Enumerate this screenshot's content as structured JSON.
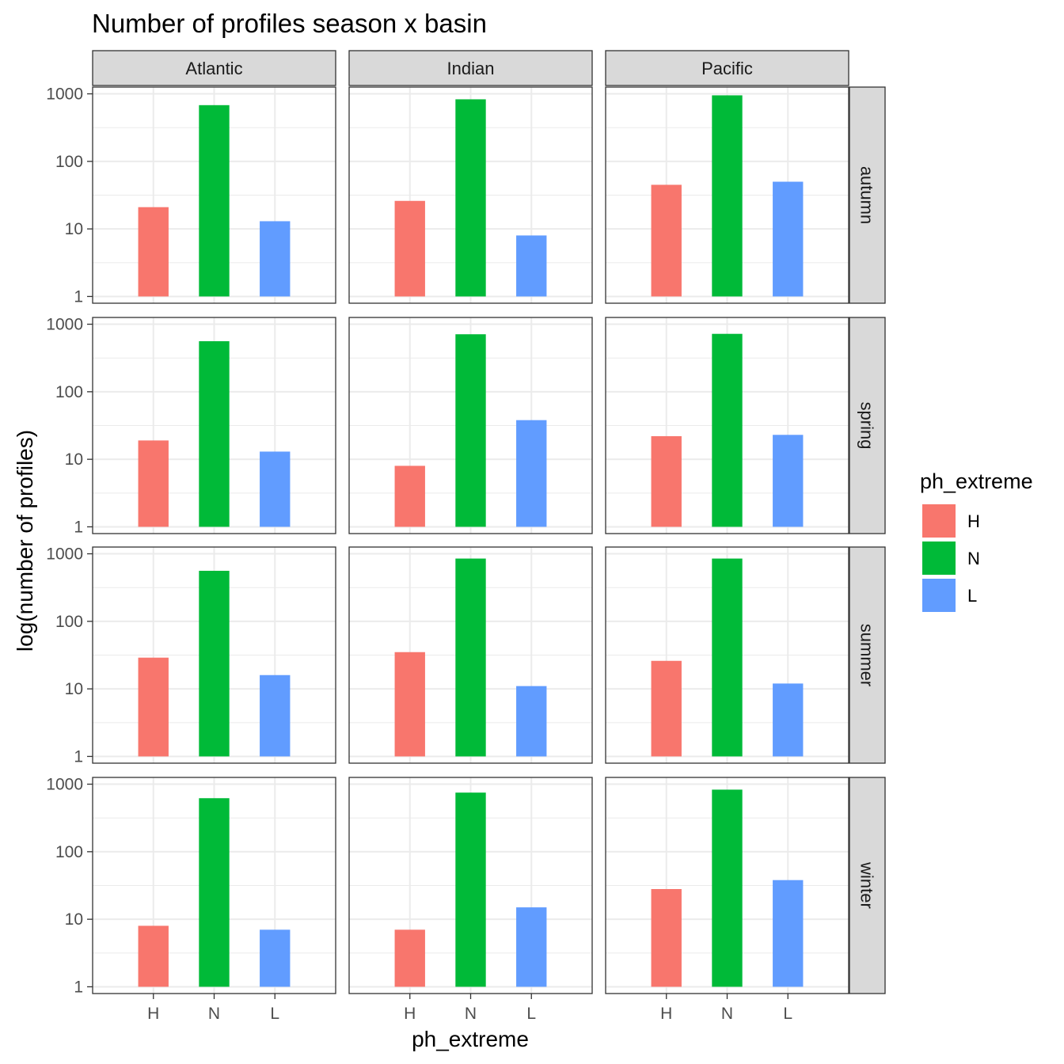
{
  "chart_data": {
    "type": "bar",
    "title": "Number of profiles season x basin",
    "xlabel": "ph_extreme",
    "ylabel": "log(number of profiles)",
    "yscale": "log10",
    "ylim": [
      1,
      1000
    ],
    "yticks": [
      1,
      10,
      100,
      1000
    ],
    "categories": [
      "H",
      "N",
      "L"
    ],
    "columns": [
      "Atlantic",
      "Indian",
      "Pacific"
    ],
    "rows": [
      "autumn",
      "spring",
      "summer",
      "winter"
    ],
    "legend": {
      "title": "ph_extreme",
      "position": "right",
      "entries": [
        {
          "label": "H",
          "color": "#F8766D"
        },
        {
          "label": "N",
          "color": "#00BA38"
        },
        {
          "label": "L",
          "color": "#619CFF"
        }
      ]
    },
    "panels": [
      {
        "basin": "Atlantic",
        "season": "autumn",
        "values": [
          21,
          680,
          13
        ]
      },
      {
        "basin": "Indian",
        "season": "autumn",
        "values": [
          26,
          830,
          8
        ]
      },
      {
        "basin": "Pacific",
        "season": "autumn",
        "values": [
          45,
          950,
          50
        ]
      },
      {
        "basin": "Atlantic",
        "season": "spring",
        "values": [
          19,
          560,
          13
        ]
      },
      {
        "basin": "Indian",
        "season": "spring",
        "values": [
          8,
          710,
          38
        ]
      },
      {
        "basin": "Pacific",
        "season": "spring",
        "values": [
          22,
          720,
          23
        ]
      },
      {
        "basin": "Atlantic",
        "season": "summer",
        "values": [
          29,
          560,
          16
        ]
      },
      {
        "basin": "Indian",
        "season": "summer",
        "values": [
          35,
          850,
          11
        ]
      },
      {
        "basin": "Pacific",
        "season": "summer",
        "values": [
          26,
          850,
          12
        ]
      },
      {
        "basin": "Atlantic",
        "season": "winter",
        "values": [
          8,
          620,
          7
        ]
      },
      {
        "basin": "Indian",
        "season": "winter",
        "values": [
          7,
          750,
          15
        ]
      },
      {
        "basin": "Pacific",
        "season": "winter",
        "values": [
          28,
          830,
          38
        ]
      }
    ],
    "grid": true
  }
}
